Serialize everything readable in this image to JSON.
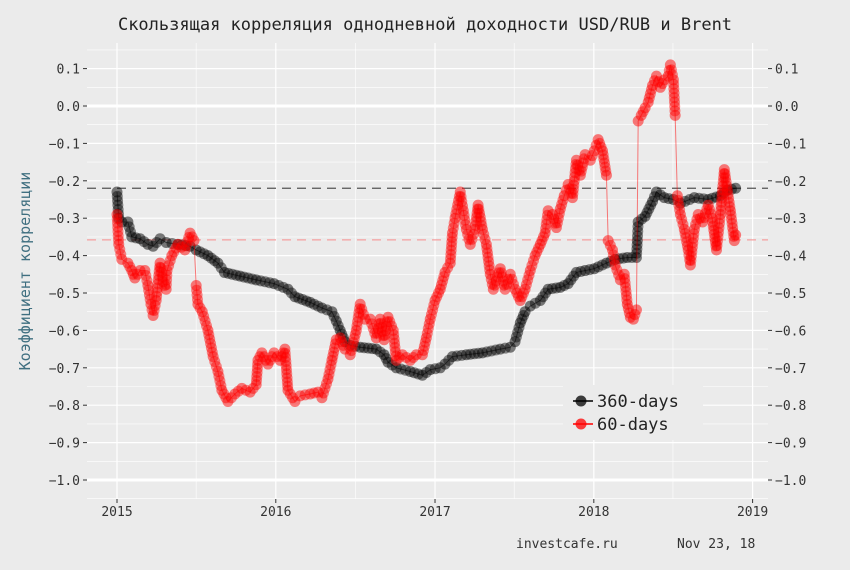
{
  "chart_data": {
    "type": "line",
    "title": "Скользящая корреляция однодневной доходности USD/RUB и Brent",
    "xlabel": "",
    "ylabel": "Коэффициент корреляции",
    "xlim": [
      "2014-10-20",
      "2019-02-15"
    ],
    "ylim": [
      -1.05,
      0.15
    ],
    "x_ticks": [
      "2015",
      "2016",
      "2017",
      "2018",
      "2019"
    ],
    "y_ticks": [
      0.1,
      0.0,
      -0.1,
      -0.2,
      -0.3,
      -0.4,
      -0.5,
      -0.6,
      -0.7,
      -0.8,
      -0.9,
      -1.0
    ],
    "y_tick_labels": [
      "0.1",
      "0.0",
      "-0.1",
      "-0.2",
      "-0.3",
      "-0.4",
      "-0.5",
      "-0.6",
      "-0.7",
      "-0.8",
      "-0.9",
      "-1.0"
    ],
    "secondary_y_axis": "right, mirrors left",
    "grid": true,
    "legend_placement": "bottom-right inside",
    "reference_lines": [
      {
        "value": -0.22,
        "color": "#555555",
        "style": "dashed"
      },
      {
        "value": -0.358,
        "color": "#f4a0a0",
        "style": "dashed"
      }
    ],
    "series": [
      {
        "name": "360-days",
        "color": "#000000",
        "points": [
          [
            "2015-01-01",
            -0.23
          ],
          [
            "2015-01-05",
            -0.3
          ],
          [
            "2015-01-12",
            -0.31
          ],
          [
            "2015-01-26",
            -0.31
          ],
          [
            "2015-02-04",
            -0.35
          ],
          [
            "2015-02-23",
            -0.355
          ],
          [
            "2015-03-13",
            -0.37
          ],
          [
            "2015-03-25",
            -0.375
          ],
          [
            "2015-04-10",
            -0.355
          ],
          [
            "2015-04-24",
            -0.365
          ],
          [
            "2015-05-21",
            -0.37
          ],
          [
            "2015-06-18",
            -0.375
          ],
          [
            "2015-07-02",
            -0.385
          ],
          [
            "2015-07-29",
            -0.4
          ],
          [
            "2015-08-21",
            -0.42
          ],
          [
            "2015-09-05",
            -0.445
          ],
          [
            "2015-10-11",
            -0.455
          ],
          [
            "2015-11-17",
            -0.465
          ],
          [
            "2015-12-28",
            -0.475
          ],
          [
            "2016-01-29",
            -0.49
          ],
          [
            "2016-02-14",
            -0.51
          ],
          [
            "2016-03-20",
            -0.525
          ],
          [
            "2016-04-16",
            -0.54
          ],
          [
            "2016-05-09",
            -0.55
          ],
          [
            "2016-05-19",
            -0.575
          ],
          [
            "2016-05-28",
            -0.6
          ],
          [
            "2016-06-08",
            -0.63
          ],
          [
            "2016-06-20",
            -0.64
          ],
          [
            "2016-07-13",
            -0.645
          ],
          [
            "2016-08-19",
            -0.65
          ],
          [
            "2016-09-06",
            -0.665
          ],
          [
            "2016-09-15",
            -0.685
          ],
          [
            "2016-10-04",
            -0.7
          ],
          [
            "2016-11-05",
            -0.71
          ],
          [
            "2016-12-03",
            -0.72
          ],
          [
            "2016-12-21",
            -0.705
          ],
          [
            "2017-01-13",
            -0.7
          ],
          [
            "2017-01-24",
            -0.69
          ],
          [
            "2017-02-10",
            -0.67
          ],
          [
            "2017-03-14",
            -0.665
          ],
          [
            "2017-04-20",
            -0.66
          ],
          [
            "2017-05-31",
            -0.65
          ],
          [
            "2017-06-23",
            -0.645
          ],
          [
            "2017-07-04",
            -0.63
          ],
          [
            "2017-07-16",
            -0.58
          ],
          [
            "2017-07-27",
            -0.55
          ],
          [
            "2017-08-08",
            -0.535
          ],
          [
            "2017-08-31",
            -0.52
          ],
          [
            "2017-09-18",
            -0.49
          ],
          [
            "2017-10-16",
            -0.485
          ],
          [
            "2017-11-03",
            -0.475
          ],
          [
            "2017-11-22",
            -0.445
          ],
          [
            "2017-12-12",
            -0.44
          ],
          [
            "2018-01-02",
            -0.435
          ],
          [
            "2018-01-30",
            -0.42
          ],
          [
            "2018-02-19",
            -0.41
          ],
          [
            "2018-03-19",
            -0.405
          ],
          [
            "2018-04-09",
            -0.405
          ],
          [
            "2018-04-11",
            -0.36
          ],
          [
            "2018-04-13",
            -0.31
          ],
          [
            "2018-04-29",
            -0.295
          ],
          [
            "2018-05-16",
            -0.255
          ],
          [
            "2018-05-25",
            -0.23
          ],
          [
            "2018-06-12",
            -0.245
          ],
          [
            "2018-07-03",
            -0.25
          ],
          [
            "2018-07-19",
            -0.26
          ],
          [
            "2018-08-20",
            -0.245
          ],
          [
            "2018-09-21",
            -0.25
          ],
          [
            "2018-10-19",
            -0.24
          ],
          [
            "2018-11-04",
            -0.225
          ],
          [
            "2018-11-23",
            -0.22
          ]
        ]
      },
      {
        "name": "60-days",
        "color": "#ff0000",
        "points": [
          [
            "2015-01-01",
            -0.29
          ],
          [
            "2015-01-05",
            -0.37
          ],
          [
            "2015-01-12",
            -0.41
          ],
          [
            "2015-01-26",
            -0.42
          ],
          [
            "2015-02-04",
            -0.44
          ],
          [
            "2015-02-11",
            -0.46
          ],
          [
            "2015-02-23",
            -0.44
          ],
          [
            "2015-03-06",
            -0.44
          ],
          [
            "2015-03-13",
            -0.48
          ],
          [
            "2015-03-20",
            -0.53
          ],
          [
            "2015-03-25",
            -0.56
          ],
          [
            "2015-04-01",
            -0.52
          ],
          [
            "2015-04-10",
            -0.42
          ],
          [
            "2015-04-17",
            -0.47
          ],
          [
            "2015-04-24",
            -0.49
          ],
          [
            "2015-04-26",
            -0.44
          ],
          [
            "2015-05-07",
            -0.4
          ],
          [
            "2015-05-21",
            -0.37
          ],
          [
            "2015-06-06",
            -0.385
          ],
          [
            "2015-06-18",
            -0.34
          ],
          [
            "2015-06-27",
            -0.36
          ],
          [
            "2015-07-02",
            -0.48
          ],
          [
            "2015-07-06",
            -0.53
          ],
          [
            "2015-07-16",
            -0.55
          ],
          [
            "2015-07-29",
            -0.6
          ],
          [
            "2015-08-10",
            -0.67
          ],
          [
            "2015-08-21",
            -0.71
          ],
          [
            "2015-08-30",
            -0.76
          ],
          [
            "2015-09-13",
            -0.79
          ],
          [
            "2015-09-29",
            -0.77
          ],
          [
            "2015-10-15",
            -0.755
          ],
          [
            "2015-11-03",
            -0.765
          ],
          [
            "2015-11-17",
            -0.745
          ],
          [
            "2015-11-21",
            -0.68
          ],
          [
            "2015-11-30",
            -0.66
          ],
          [
            "2015-12-14",
            -0.69
          ],
          [
            "2015-12-28",
            -0.66
          ],
          [
            "2016-01-11",
            -0.68
          ],
          [
            "2016-01-22",
            -0.65
          ],
          [
            "2016-01-29",
            -0.76
          ],
          [
            "2016-02-14",
            -0.79
          ],
          [
            "2016-02-26",
            -0.775
          ],
          [
            "2016-03-20",
            -0.77
          ],
          [
            "2016-04-07",
            -0.765
          ],
          [
            "2016-04-16",
            -0.78
          ],
          [
            "2016-04-30",
            -0.73
          ],
          [
            "2016-05-09",
            -0.68
          ],
          [
            "2016-05-19",
            -0.625
          ],
          [
            "2016-05-28",
            -0.62
          ],
          [
            "2016-06-08",
            -0.65
          ],
          [
            "2016-06-20",
            -0.665
          ],
          [
            "2016-07-04",
            -0.6
          ],
          [
            "2016-07-13",
            -0.53
          ],
          [
            "2016-07-24",
            -0.57
          ],
          [
            "2016-08-05",
            -0.57
          ],
          [
            "2016-08-19",
            -0.62
          ],
          [
            "2016-08-28",
            -0.57
          ],
          [
            "2016-09-06",
            -0.625
          ],
          [
            "2016-09-15",
            -0.565
          ],
          [
            "2016-09-27",
            -0.6
          ],
          [
            "2016-10-04",
            -0.68
          ],
          [
            "2016-10-18",
            -0.665
          ],
          [
            "2016-11-05",
            -0.68
          ],
          [
            "2016-11-19",
            -0.665
          ],
          [
            "2016-12-03",
            -0.665
          ],
          [
            "2016-12-12",
            -0.62
          ],
          [
            "2016-12-21",
            -0.57
          ],
          [
            "2017-01-01",
            -0.52
          ],
          [
            "2017-01-13",
            -0.49
          ],
          [
            "2017-01-24",
            -0.445
          ],
          [
            "2017-02-05",
            -0.42
          ],
          [
            "2017-02-10",
            -0.34
          ],
          [
            "2017-02-16",
            -0.3
          ],
          [
            "2017-02-28",
            -0.23
          ],
          [
            "2017-03-07",
            -0.28
          ],
          [
            "2017-03-14",
            -0.33
          ],
          [
            "2017-03-23",
            -0.37
          ],
          [
            "2017-04-03",
            -0.33
          ],
          [
            "2017-04-10",
            -0.265
          ],
          [
            "2017-04-20",
            -0.33
          ],
          [
            "2017-04-29",
            -0.37
          ],
          [
            "2017-05-08",
            -0.45
          ],
          [
            "2017-05-15",
            -0.49
          ],
          [
            "2017-05-31",
            -0.435
          ],
          [
            "2017-06-11",
            -0.49
          ],
          [
            "2017-06-23",
            -0.45
          ],
          [
            "2017-07-04",
            -0.49
          ],
          [
            "2017-07-16",
            -0.52
          ],
          [
            "2017-07-27",
            -0.49
          ],
          [
            "2017-08-08",
            -0.44
          ],
          [
            "2017-08-19",
            -0.4
          ],
          [
            "2017-08-31",
            -0.37
          ],
          [
            "2017-09-11",
            -0.34
          ],
          [
            "2017-09-18",
            -0.28
          ],
          [
            "2017-09-28",
            -0.29
          ],
          [
            "2017-10-07",
            -0.325
          ],
          [
            "2017-10-16",
            -0.275
          ],
          [
            "2017-10-25",
            -0.24
          ],
          [
            "2017-11-03",
            -0.21
          ],
          [
            "2017-11-13",
            -0.245
          ],
          [
            "2017-11-22",
            -0.145
          ],
          [
            "2017-12-01",
            -0.185
          ],
          [
            "2017-12-12",
            -0.13
          ],
          [
            "2017-12-24",
            -0.145
          ],
          [
            "2018-01-02",
            -0.12
          ],
          [
            "2018-01-11",
            -0.09
          ],
          [
            "2018-01-21",
            -0.12
          ],
          [
            "2018-01-30",
            -0.185
          ],
          [
            "2018-02-03",
            -0.36
          ],
          [
            "2018-02-13",
            -0.385
          ],
          [
            "2018-02-19",
            -0.425
          ],
          [
            "2018-03-03",
            -0.465
          ],
          [
            "2018-03-12",
            -0.45
          ],
          [
            "2018-03-19",
            -0.53
          ],
          [
            "2018-03-26",
            -0.565
          ],
          [
            "2018-04-02",
            -0.57
          ],
          [
            "2018-04-09",
            -0.545
          ],
          [
            "2018-04-13",
            -0.04
          ],
          [
            "2018-04-20",
            -0.025
          ],
          [
            "2018-04-29",
            -0.005
          ],
          [
            "2018-05-06",
            0.01
          ],
          [
            "2018-05-16",
            0.055
          ],
          [
            "2018-05-25",
            0.08
          ],
          [
            "2018-06-03",
            0.05
          ],
          [
            "2018-06-12",
            0.07
          ],
          [
            "2018-06-21",
            0.08
          ],
          [
            "2018-06-26",
            0.11
          ],
          [
            "2018-07-03",
            0.07
          ],
          [
            "2018-07-07",
            -0.025
          ],
          [
            "2018-07-12",
            -0.24
          ],
          [
            "2018-07-19",
            -0.29
          ],
          [
            "2018-07-28",
            -0.33
          ],
          [
            "2018-08-06",
            -0.385
          ],
          [
            "2018-08-11",
            -0.425
          ],
          [
            "2018-08-20",
            -0.33
          ],
          [
            "2018-08-29",
            -0.29
          ],
          [
            "2018-09-08",
            -0.31
          ],
          [
            "2018-09-21",
            -0.265
          ],
          [
            "2018-09-30",
            -0.3
          ],
          [
            "2018-10-10",
            -0.385
          ],
          [
            "2018-10-19",
            -0.29
          ],
          [
            "2018-10-28",
            -0.17
          ],
          [
            "2018-11-04",
            -0.225
          ],
          [
            "2018-11-11",
            -0.28
          ],
          [
            "2018-11-20",
            -0.36
          ],
          [
            "2018-11-23",
            -0.345
          ]
        ]
      }
    ]
  },
  "caption": {
    "source": "investcafe.ru",
    "date": "Nov 23, 18"
  }
}
